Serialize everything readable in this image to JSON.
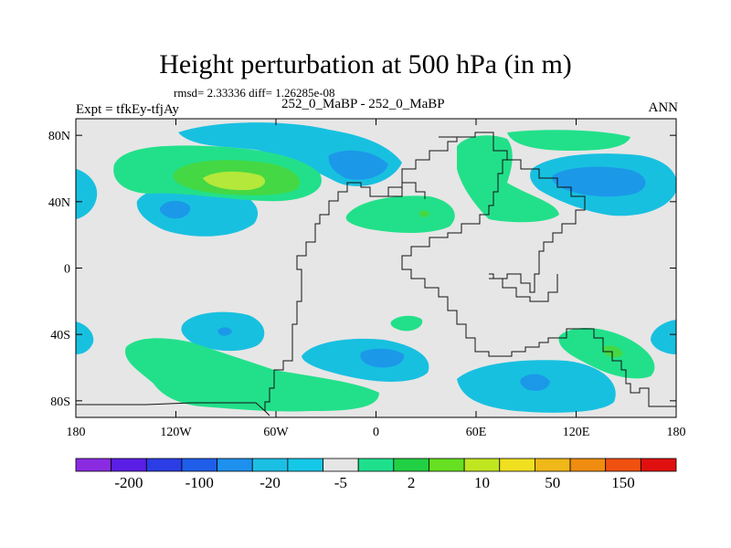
{
  "title": "Height perturbation at 500 hPa (in m)",
  "stats": "rmsd= 2.33336 diff= 1.26285e-08",
  "experiment": "Expt = tfkEy-tfjAy",
  "center_label": "252_0_MaBP - 252_0_MaBP",
  "season": "ANN",
  "axes": {
    "lat_ticks": [
      {
        "v": 80,
        "label": "80N"
      },
      {
        "v": 40,
        "label": "40N"
      },
      {
        "v": 0,
        "label": "0"
      },
      {
        "v": -40,
        "label": "40S"
      },
      {
        "v": -80,
        "label": "80S"
      }
    ],
    "lon_ticks": [
      {
        "v": -180,
        "label": "180"
      },
      {
        "v": -120,
        "label": "120W"
      },
      {
        "v": -60,
        "label": "60W"
      },
      {
        "v": 0,
        "label": "0"
      },
      {
        "v": 60,
        "label": "60E"
      },
      {
        "v": 120,
        "label": "120E"
      },
      {
        "v": 180,
        "label": "180"
      }
    ]
  },
  "colorbar": {
    "colors": [
      "#8a2be2",
      "#5b1ee6",
      "#2b3de4",
      "#1f5ee8",
      "#1e90ee",
      "#1cbfe4",
      "#16c8e8",
      "#e6e6e6",
      "#1ee08c",
      "#22d044",
      "#66e020",
      "#c0e620",
      "#f0e020",
      "#f0b818",
      "#f08c10",
      "#f05010",
      "#e01010"
    ],
    "labels": [
      "-200",
      "-100",
      "-20",
      "-5",
      "2",
      "10",
      "50",
      "150"
    ]
  },
  "colors": {
    "background": "#e6e6e6",
    "blue": "#18c0e0",
    "blue_dark": "#1c98e8",
    "green": "#22e08a",
    "green_mid": "#44d844",
    "yellow_green": "#b4e83a"
  }
}
